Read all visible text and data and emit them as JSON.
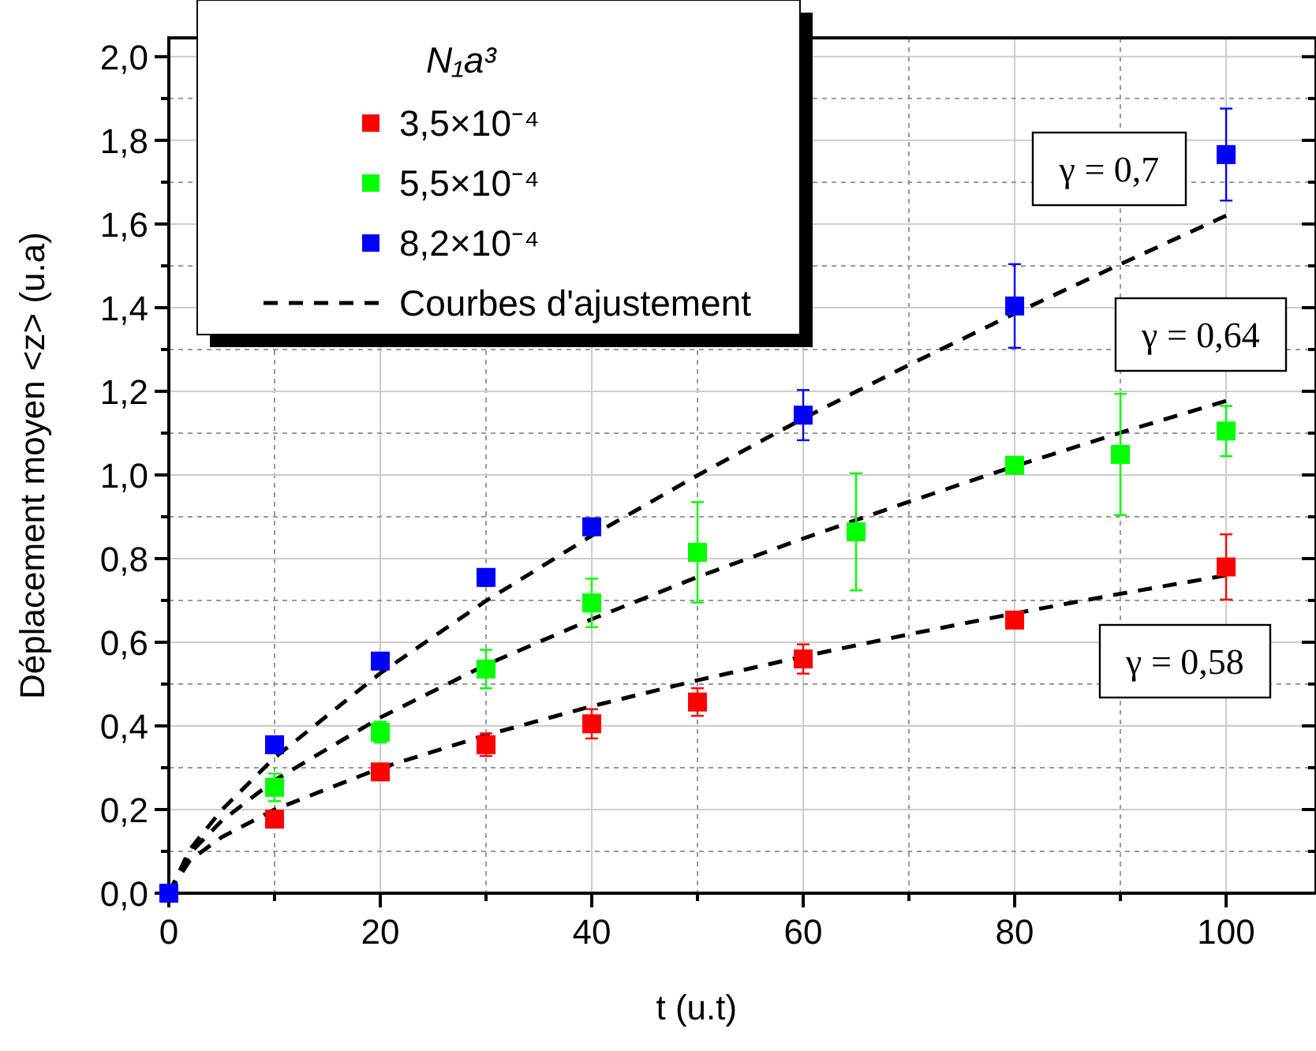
{
  "chart_data": {
    "type": "scatter",
    "xlabel": "t (u.t)",
    "ylabel": "Déplacement moyen <z> (u.a)",
    "legend_title": "N₁a³",
    "legend": "top left",
    "grid": true,
    "marker": "square",
    "xlim": [
      0,
      108.5
    ],
    "xticks": [
      0,
      {
        "value": 10,
        "label": null
      },
      20,
      {
        "value": 30,
        "label": null
      },
      40,
      {
        "value": 50,
        "label": null
      },
      60,
      {
        "value": 70,
        "label": null
      },
      80,
      {
        "value": 90,
        "label": null
      },
      100
    ],
    "ylim": [
      0,
      2.045
    ],
    "yticks": [
      {
        "value": 0,
        "label": "0,0"
      },
      {
        "value": 0.1,
        "label": null
      },
      {
        "value": 0.2,
        "label": "0,2"
      },
      {
        "value": 0.3,
        "label": null
      },
      {
        "value": 0.4,
        "label": "0,4"
      },
      {
        "value": 0.5,
        "label": null
      },
      {
        "value": 0.6,
        "label": "0,6"
      },
      {
        "value": 0.7,
        "label": null
      },
      {
        "value": 0.8,
        "label": "0,8"
      },
      {
        "value": 0.9,
        "label": null
      },
      {
        "value": 1.0,
        "label": "1,0"
      },
      {
        "value": 1.1,
        "label": null
      },
      {
        "value": 1.2,
        "label": "1,2"
      },
      {
        "value": 1.3,
        "label": null
      },
      {
        "value": 1.4,
        "label": "1,4"
      },
      {
        "value": 1.5,
        "label": null
      },
      {
        "value": 1.6,
        "label": "1,6"
      },
      {
        "value": 1.7,
        "label": null
      },
      {
        "value": 1.8,
        "label": "1,8"
      },
      {
        "value": 1.9,
        "label": null
      },
      {
        "value": 2.0,
        "label": "2,0"
      }
    ],
    "series": [
      {
        "name": "3,5×10⁻⁴",
        "color": "#ff0000",
        "x": [
          10,
          20,
          30,
          40,
          50,
          60,
          80,
          100
        ],
        "values": [
          0.177,
          0.29,
          0.355,
          0.405,
          0.457,
          0.56,
          0.653,
          0.78
        ],
        "errors": [
          null,
          null,
          0.027,
          0.035,
          0.033,
          0.035,
          null,
          0.078
        ]
      },
      {
        "name": "5,5×10⁻⁴",
        "color": "#00ff00",
        "x": [
          10,
          20,
          30,
          40,
          50,
          65,
          80,
          90,
          100
        ],
        "values": [
          0.253,
          0.385,
          0.536,
          0.694,
          0.815,
          0.864,
          1.023,
          1.049,
          1.105
        ],
        "errors": [
          0.033,
          0.025,
          0.046,
          0.058,
          0.12,
          0.14,
          null,
          0.145,
          0.06
        ]
      },
      {
        "name": "8,2×10⁻⁴",
        "color": "#0000ff",
        "x": [
          0,
          10,
          20,
          30,
          40,
          60,
          80,
          100
        ],
        "values": [
          0,
          0.355,
          0.555,
          0.755,
          0.876,
          1.143,
          1.404,
          1.766
        ],
        "errors": [
          null,
          null,
          null,
          0.02,
          null,
          0.06,
          0.1,
          0.11
        ]
      },
      {
        "name": "Courbes d'ajustement",
        "type": "line",
        "color": "#000000",
        "line_style": "dashed",
        "marker": "none",
        "x": [
          0,
          2,
          5,
          10,
          20,
          30,
          40,
          50,
          60,
          70,
          80,
          90,
          100
        ],
        "values": [
          0,
          0.079,
          0.134,
          0.2,
          0.299,
          0.378,
          0.447,
          0.509,
          0.566,
          0.619,
          0.669,
          0.716,
          0.76
        ]
      },
      {
        "type": "line",
        "color": "#000000",
        "line_style": "dashed",
        "marker": "none",
        "x": [
          0,
          2,
          5,
          10,
          20,
          30,
          40,
          50,
          60,
          70,
          80,
          90,
          100
        ],
        "values": [
          0,
          0.096,
          0.173,
          0.27,
          0.42,
          0.546,
          0.655,
          0.756,
          0.848,
          0.936,
          1.021,
          1.101,
          1.177
        ]
      },
      {
        "type": "line",
        "color": "#000000",
        "line_style": "dashed",
        "marker": "none",
        "x": [
          0,
          2,
          5,
          10,
          20,
          30,
          40,
          50,
          60,
          70,
          80,
          90,
          100
        ],
        "values": [
          0,
          0.105,
          0.199,
          0.324,
          0.526,
          0.699,
          0.855,
          0.999,
          1.135,
          1.263,
          1.386,
          1.504,
          1.62
        ]
      }
    ],
    "annotations": [
      "γ = 0,7",
      "γ = 0,64",
      "γ = 0,58"
    ]
  }
}
